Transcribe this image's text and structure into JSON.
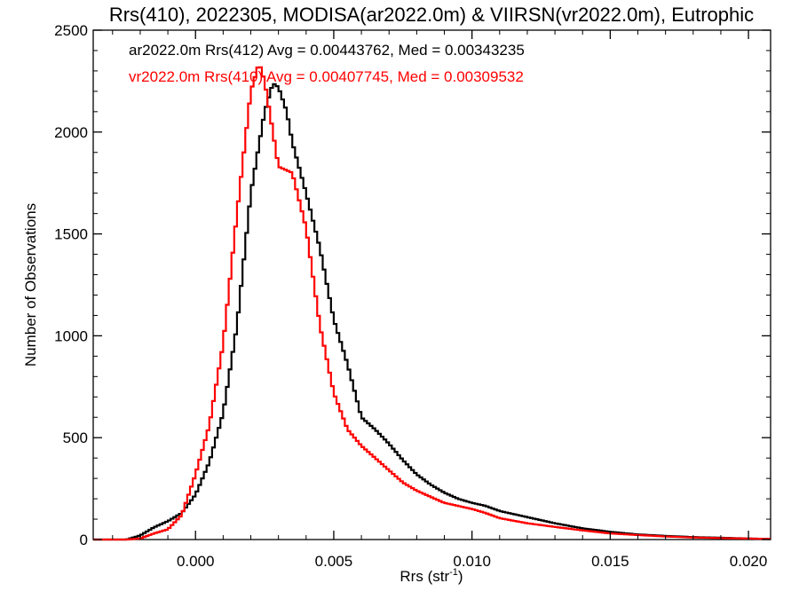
{
  "chart_data": {
    "type": "line",
    "title": "Rrs(410), 2022305, MODISA(ar2022.0m) & VIIRSN(vr2022.0m), Eutrophic",
    "xlabel": "Rrs (str",
    "xlabel_sup": "-1",
    "xlabel_close": ")",
    "ylabel": "Number of Observations",
    "xlim": [
      -0.0037,
      0.0208
    ],
    "ylim": [
      0,
      2500
    ],
    "x_ticks": [
      {
        "value": 0.0,
        "label": "0.000"
      },
      {
        "value": 0.005,
        "label": "0.005"
      },
      {
        "value": 0.01,
        "label": "0.010"
      },
      {
        "value": 0.015,
        "label": "0.015"
      },
      {
        "value": 0.02,
        "label": "0.020"
      }
    ],
    "y_ticks": [
      {
        "value": 0,
        "label": "0"
      },
      {
        "value": 500,
        "label": "500"
      },
      {
        "value": 1000,
        "label": "1000"
      },
      {
        "value": 1500,
        "label": "1500"
      },
      {
        "value": 2000,
        "label": "2000"
      },
      {
        "value": 2500,
        "label": "2500"
      }
    ],
    "grid": false,
    "legend_placement": "top-left",
    "series": [
      {
        "name": "ar2022.0m Rrs(412) Avg = 0.00443762, Med = 0.00343235",
        "color": "#000000",
        "points": [
          [
            -0.0037,
            0
          ],
          [
            -0.0025,
            0
          ],
          [
            -0.002,
            20
          ],
          [
            -0.0015,
            60
          ],
          [
            -0.001,
            90
          ],
          [
            -0.0005,
            130
          ],
          [
            0.0,
            220
          ],
          [
            0.0005,
            380
          ],
          [
            0.001,
            620
          ],
          [
            0.0015,
            1050
          ],
          [
            0.002,
            1700
          ],
          [
            0.0025,
            2100
          ],
          [
            0.0028,
            2240
          ],
          [
            0.003,
            2220
          ],
          [
            0.0033,
            2100
          ],
          [
            0.0035,
            1950
          ],
          [
            0.004,
            1700
          ],
          [
            0.0045,
            1430
          ],
          [
            0.005,
            1080
          ],
          [
            0.0055,
            860
          ],
          [
            0.006,
            600
          ],
          [
            0.0065,
            540
          ],
          [
            0.007,
            470
          ],
          [
            0.0075,
            390
          ],
          [
            0.008,
            320
          ],
          [
            0.0085,
            270
          ],
          [
            0.009,
            230
          ],
          [
            0.0095,
            200
          ],
          [
            0.01,
            180
          ],
          [
            0.0105,
            165
          ],
          [
            0.011,
            140
          ],
          [
            0.012,
            110
          ],
          [
            0.013,
            80
          ],
          [
            0.014,
            55
          ],
          [
            0.015,
            38
          ],
          [
            0.016,
            25
          ],
          [
            0.017,
            18
          ],
          [
            0.018,
            12
          ],
          [
            0.019,
            9
          ],
          [
            0.02,
            5
          ],
          [
            0.0208,
            3
          ]
        ]
      },
      {
        "name": "vr2022.0m Rrs(410) Avg = 0.00407745, Med = 0.00309532",
        "color": "#ff0000",
        "points": [
          [
            -0.0037,
            0
          ],
          [
            -0.0025,
            0
          ],
          [
            -0.002,
            5
          ],
          [
            -0.0015,
            30
          ],
          [
            -0.001,
            50
          ],
          [
            -0.0005,
            120
          ],
          [
            0.0,
            320
          ],
          [
            0.0005,
            560
          ],
          [
            0.001,
            960
          ],
          [
            0.0015,
            1600
          ],
          [
            0.002,
            2200
          ],
          [
            0.0023,
            2340
          ],
          [
            0.0025,
            2250
          ],
          [
            0.0028,
            2000
          ],
          [
            0.003,
            1830
          ],
          [
            0.0035,
            1800
          ],
          [
            0.004,
            1530
          ],
          [
            0.0045,
            1050
          ],
          [
            0.005,
            720
          ],
          [
            0.0055,
            540
          ],
          [
            0.006,
            460
          ],
          [
            0.0065,
            400
          ],
          [
            0.007,
            340
          ],
          [
            0.0075,
            280
          ],
          [
            0.008,
            240
          ],
          [
            0.0085,
            210
          ],
          [
            0.009,
            180
          ],
          [
            0.0095,
            165
          ],
          [
            0.01,
            150
          ],
          [
            0.0105,
            130
          ],
          [
            0.011,
            105
          ],
          [
            0.012,
            80
          ],
          [
            0.013,
            62
          ],
          [
            0.014,
            45
          ],
          [
            0.015,
            30
          ],
          [
            0.016,
            22
          ],
          [
            0.017,
            15
          ],
          [
            0.018,
            10
          ],
          [
            0.019,
            7
          ],
          [
            0.02,
            5
          ],
          [
            0.0208,
            3
          ]
        ]
      }
    ]
  }
}
